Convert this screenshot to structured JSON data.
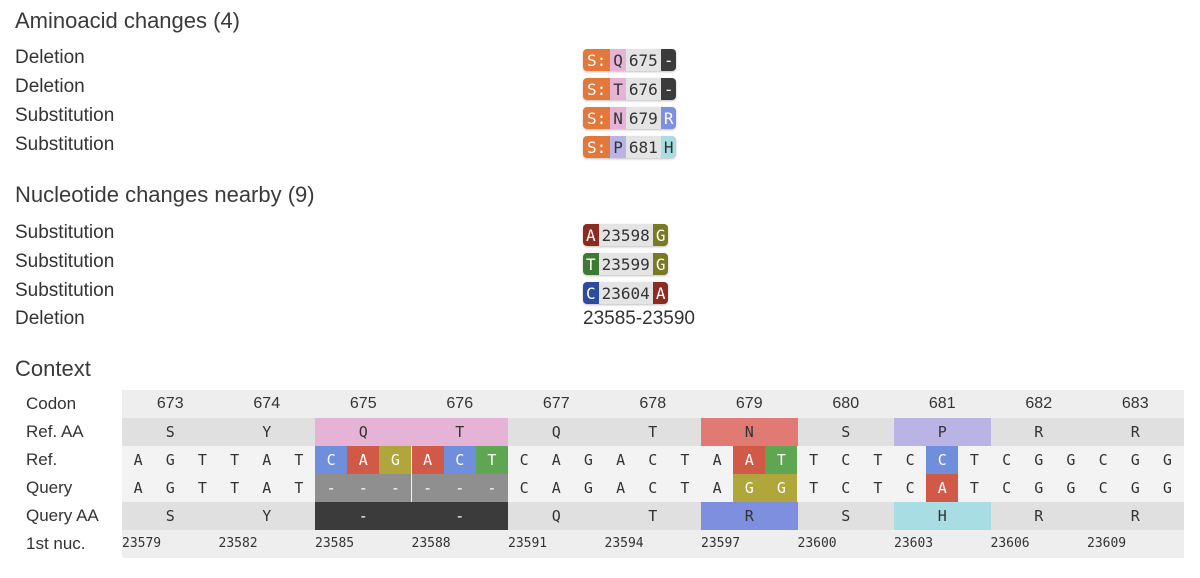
{
  "aa_section": {
    "title": "Aminoacid changes (4)",
    "rows": [
      {
        "type": "Deletion",
        "gene": "S:",
        "ref": "Q",
        "pos": "675",
        "alt": "-",
        "ref_color": "#e4b3d6",
        "alt_color": "#3b3b3b",
        "alt_text_color": "#ffffff"
      },
      {
        "type": "Deletion",
        "gene": "S:",
        "ref": "T",
        "pos": "676",
        "alt": "-",
        "ref_color": "#e4b3d6",
        "alt_color": "#3b3b3b",
        "alt_text_color": "#ffffff"
      },
      {
        "type": "Substitution",
        "gene": "S:",
        "ref": "N",
        "pos": "679",
        "alt": "R",
        "ref_color": "#e4b3d6",
        "alt_color": "#7f8fe0",
        "alt_text_color": "#ffffff"
      },
      {
        "type": "Substitution",
        "gene": "S:",
        "ref": "P",
        "pos": "681",
        "alt": "H",
        "ref_color": "#b9b3e6",
        "alt_color": "#a8dde3",
        "alt_text_color": "#333333"
      }
    ]
  },
  "nuc_section": {
    "title": "Nucleotide changes nearby (9)",
    "rows": [
      {
        "type": "Substitution",
        "ref": "A",
        "pos": "23598",
        "alt": "G",
        "ref_color": "#8b2b22",
        "alt_color": "#7a7a24"
      },
      {
        "type": "Substitution",
        "ref": "T",
        "pos": "23599",
        "alt": "G",
        "ref_color": "#3f7a32",
        "alt_color": "#7a7a24"
      },
      {
        "type": "Substitution",
        "ref": "C",
        "pos": "23604",
        "alt": "A",
        "ref_color": "#2b4aa0",
        "alt_color": "#8b2b22"
      }
    ],
    "deletion": {
      "type": "Deletion",
      "range": "23585-23590"
    }
  },
  "context": {
    "title": "Context",
    "labels": {
      "codon": "Codon",
      "ref_aa": "Ref. AA",
      "ref": "Ref.",
      "query": "Query",
      "query_aa": "Query AA",
      "first_nuc": "1st nuc."
    },
    "codons": [
      "673",
      "674",
      "675",
      "676",
      "677",
      "678",
      "679",
      "680",
      "681",
      "682",
      "683"
    ],
    "ref_aa": [
      "S",
      "Y",
      "Q",
      "T",
      "Q",
      "T",
      "N",
      "S",
      "P",
      "R",
      "R"
    ],
    "ref_aa_colors": [
      "#e0e0e0",
      "#e0e0e0",
      "#e4b3d6",
      "#e4b3d6",
      "#e0e0e0",
      "#e0e0e0",
      "#e07a72",
      "#e0e0e0",
      "#b9b3e6",
      "#e0e0e0",
      "#e0e0e0"
    ],
    "query_aa": [
      "S",
      "Y",
      "-",
      "-",
      "Q",
      "T",
      "R",
      "S",
      "H",
      "R",
      "R"
    ],
    "query_aa_colors": [
      "#e0e0e0",
      "#e0e0e0",
      "#3b3b3b",
      "#3b3b3b",
      "#e0e0e0",
      "#e0e0e0",
      "#7f8fe0",
      "#e0e0e0",
      "#a8dde3",
      "#e0e0e0",
      "#e0e0e0"
    ],
    "ref_seq": [
      "A",
      "G",
      "T",
      "T",
      "A",
      "T",
      "C",
      "A",
      "G",
      "A",
      "C",
      "T",
      "C",
      "A",
      "G",
      "A",
      "C",
      "T",
      "A",
      "A",
      "T",
      "T",
      "C",
      "T",
      "C",
      "C",
      "T",
      "C",
      "G",
      "G",
      "C",
      "G",
      "G"
    ],
    "ref_seq_colors": {
      "6": "#6f8fdc",
      "7": "#d05a47",
      "8": "#b0a63c",
      "9": "#d05a47",
      "10": "#6f8fdc",
      "11": "#5fa653",
      "19": "#d05a47",
      "20": "#5fa653",
      "25": "#6f8fdc"
    },
    "query_seq": [
      "A",
      "G",
      "T",
      "T",
      "A",
      "T",
      "-",
      "-",
      "-",
      "-",
      "-",
      "-",
      "C",
      "A",
      "G",
      "A",
      "C",
      "T",
      "A",
      "G",
      "G",
      "T",
      "C",
      "T",
      "C",
      "A",
      "T",
      "C",
      "G",
      "G",
      "C",
      "G",
      "G"
    ],
    "query_seq_colors": {
      "6": "#8f8f8f",
      "7": "#8f8f8f",
      "8": "#8f8f8f",
      "9": "#8f8f8f",
      "10": "#8f8f8f",
      "11": "#8f8f8f",
      "19": "#b0a63c",
      "20": "#b0a63c",
      "25": "#d05a47"
    },
    "first_nuc": [
      "23579",
      "23582",
      "23585",
      "23588",
      "23591",
      "23594",
      "23597",
      "23600",
      "23603",
      "23606",
      "23609"
    ]
  }
}
